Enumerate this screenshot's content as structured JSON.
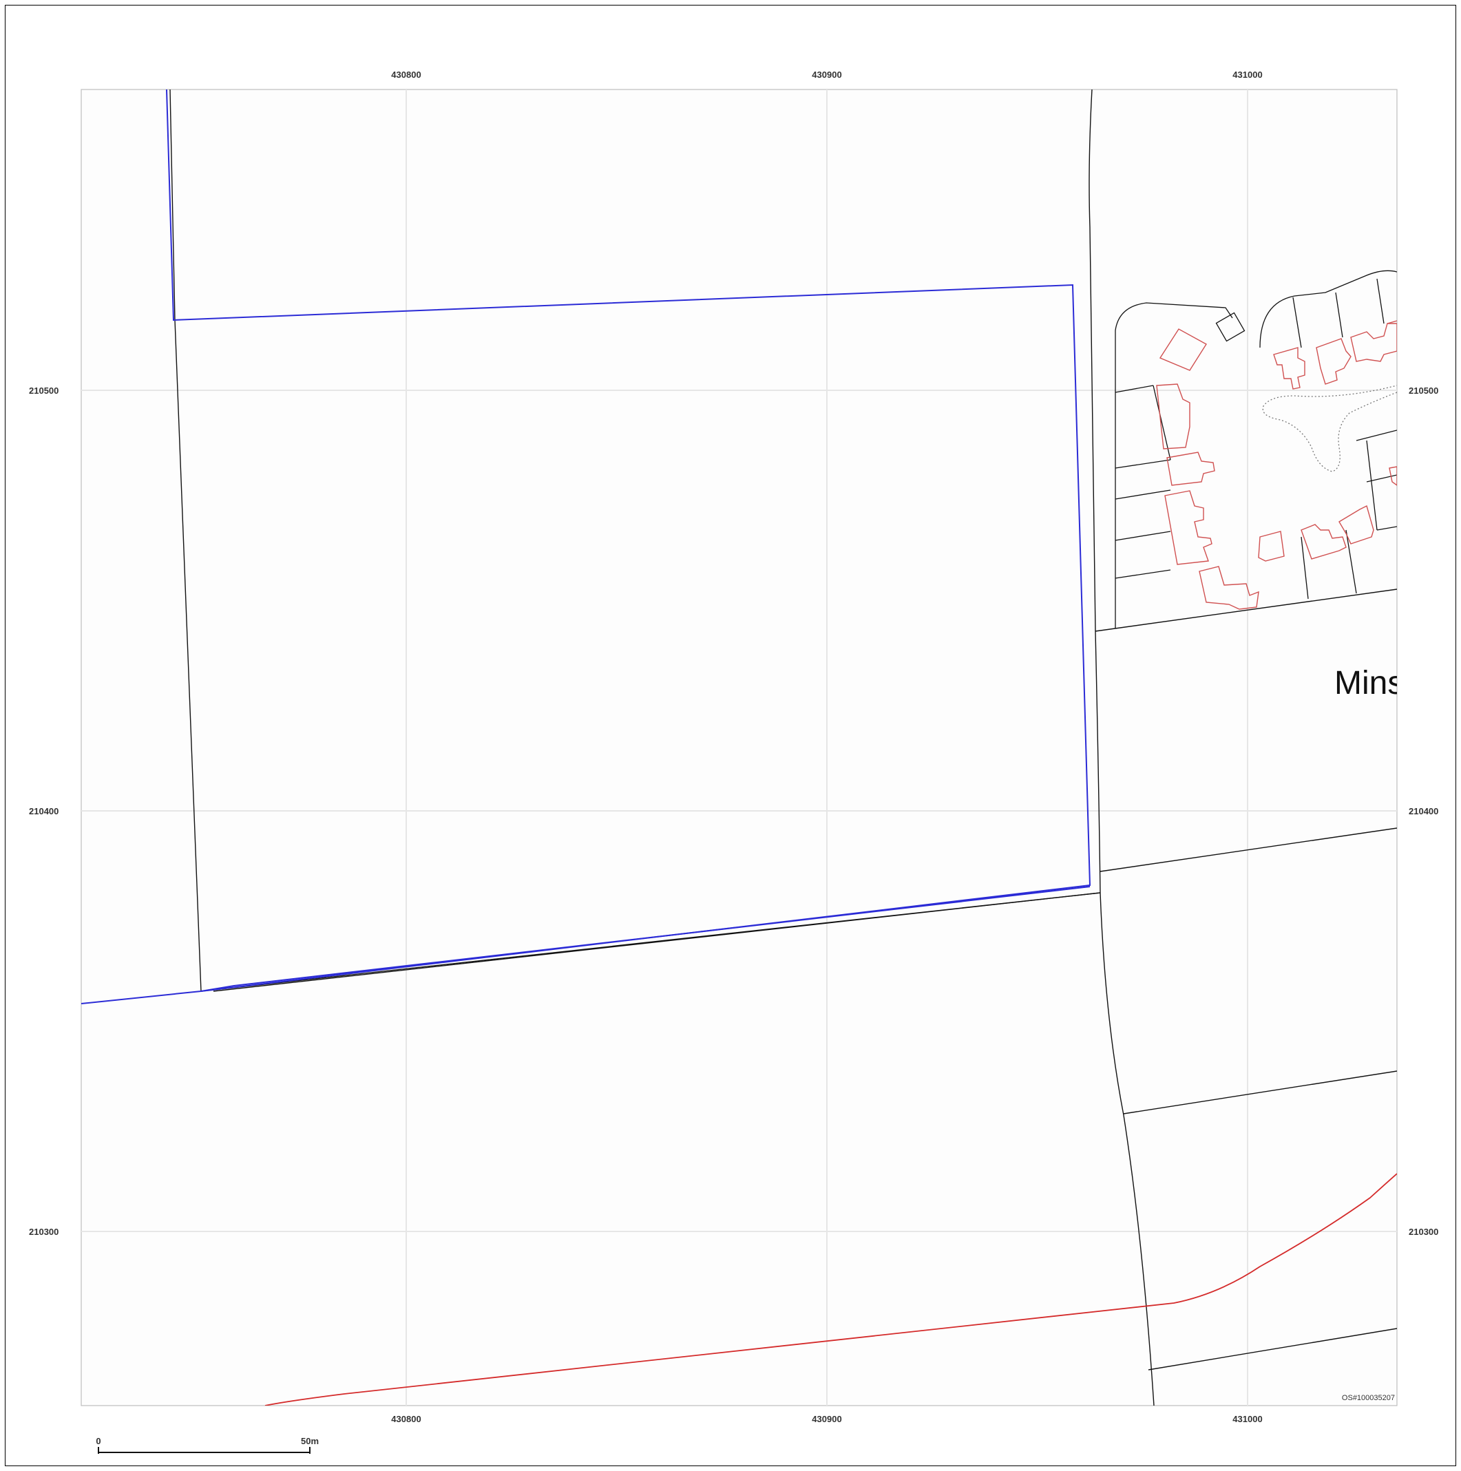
{
  "map": {
    "place_label": "Mins",
    "copyright": "OS#100035207",
    "easting_ticks": [
      "430800",
      "430900",
      "431000"
    ],
    "northing_ticks": [
      "210500",
      "210400",
      "210300"
    ]
  },
  "scale_bar": {
    "start_label": "0",
    "end_label": "50m"
  },
  "colors": {
    "site_boundary": "#2b2bd6",
    "road_line": "#d42a2a",
    "building_outline": "#d05050",
    "grid": "#e4e4e4",
    "line": "#111111"
  }
}
